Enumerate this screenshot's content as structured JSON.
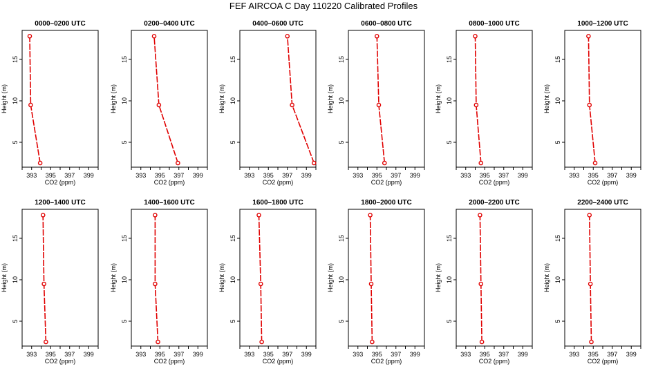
{
  "figure": {
    "title": "FEF AIRCOA C  Day 110220  Calibrated Profiles"
  },
  "colors": {
    "series": "#e00000",
    "axes": "#000000",
    "background": "#ffffff"
  },
  "chart_data": [
    {
      "type": "line",
      "title": "0000–0200 UTC",
      "xlabel": "CO2 (ppm)",
      "ylabel": "Height (m)",
      "xlim": [
        392,
        400
      ],
      "ylim": [
        2,
        18.5
      ],
      "xticks": [
        "393",
        "395",
        "397",
        "399"
      ],
      "yticks": [
        "5",
        "10",
        "15"
      ],
      "series": [
        {
          "name": "CO2",
          "x": [
            393.9,
            392.9,
            392.8
          ],
          "y": [
            2.5,
            9.5,
            17.8
          ]
        }
      ]
    },
    {
      "type": "line",
      "title": "0200–0400 UTC",
      "xlabel": "CO2 (ppm)",
      "ylabel": "Height (m)",
      "xlim": [
        392,
        400
      ],
      "ylim": [
        2,
        18.5
      ],
      "xticks": [
        "393",
        "395",
        "397",
        "399"
      ],
      "yticks": [
        "5",
        "10",
        "15"
      ],
      "series": [
        {
          "name": "CO2",
          "x": [
            396.9,
            394.9,
            394.4
          ],
          "y": [
            2.5,
            9.5,
            17.8
          ]
        }
      ]
    },
    {
      "type": "line",
      "title": "0400–0600 UTC",
      "xlabel": "CO2 (ppm)",
      "ylabel": "Height (m)",
      "xlim": [
        392,
        400
      ],
      "ylim": [
        2,
        18.5
      ],
      "xticks": [
        "393",
        "395",
        "397",
        "399"
      ],
      "yticks": [
        "5",
        "10",
        "15"
      ],
      "series": [
        {
          "name": "CO2",
          "x": [
            399.8,
            397.5,
            397.0
          ],
          "y": [
            2.5,
            9.5,
            17.8
          ]
        }
      ]
    },
    {
      "type": "line",
      "title": "0600–0800 UTC",
      "xlabel": "CO2 (ppm)",
      "ylabel": "Height (m)",
      "xlim": [
        392,
        400
      ],
      "ylim": [
        2,
        18.5
      ],
      "xticks": [
        "393",
        "395",
        "397",
        "399"
      ],
      "yticks": [
        "5",
        "10",
        "15"
      ],
      "series": [
        {
          "name": "CO2",
          "x": [
            395.8,
            395.2,
            395.0
          ],
          "y": [
            2.5,
            9.5,
            17.8
          ]
        }
      ]
    },
    {
      "type": "line",
      "title": "0800–1000 UTC",
      "xlabel": "CO2 (ppm)",
      "ylabel": "Height (m)",
      "xlim": [
        392,
        400
      ],
      "ylim": [
        2,
        18.5
      ],
      "xticks": [
        "393",
        "395",
        "397",
        "399"
      ],
      "yticks": [
        "5",
        "10",
        "15"
      ],
      "series": [
        {
          "name": "CO2",
          "x": [
            394.6,
            394.1,
            394.0
          ],
          "y": [
            2.5,
            9.5,
            17.8
          ]
        }
      ]
    },
    {
      "type": "line",
      "title": "1000–1200 UTC",
      "xlabel": "CO2 (ppm)",
      "ylabel": "Height (m)",
      "xlim": [
        392,
        400
      ],
      "ylim": [
        2,
        18.5
      ],
      "xticks": [
        "393",
        "395",
        "397",
        "399"
      ],
      "yticks": [
        "5",
        "10",
        "15"
      ],
      "series": [
        {
          "name": "CO2",
          "x": [
            395.2,
            394.6,
            394.5
          ],
          "y": [
            2.5,
            9.5,
            17.8
          ]
        }
      ]
    },
    {
      "type": "line",
      "title": "1200–1400 UTC",
      "xlabel": "CO2 (ppm)",
      "ylabel": "Height (m)",
      "xlim": [
        392,
        400
      ],
      "ylim": [
        2,
        18.5
      ],
      "xticks": [
        "393",
        "395",
        "397",
        "399"
      ],
      "yticks": [
        "5",
        "10",
        "15"
      ],
      "series": [
        {
          "name": "CO2",
          "x": [
            394.5,
            394.3,
            394.2
          ],
          "y": [
            2.5,
            9.5,
            17.8
          ]
        }
      ]
    },
    {
      "type": "line",
      "title": "1400–1600 UTC",
      "xlabel": "CO2 (ppm)",
      "ylabel": "Height (m)",
      "xlim": [
        392,
        400
      ],
      "ylim": [
        2,
        18.5
      ],
      "xticks": [
        "393",
        "395",
        "397",
        "399"
      ],
      "yticks": [
        "5",
        "10",
        "15"
      ],
      "series": [
        {
          "name": "CO2",
          "x": [
            394.8,
            394.5,
            394.5
          ],
          "y": [
            2.5,
            9.5,
            17.8
          ]
        }
      ]
    },
    {
      "type": "line",
      "title": "1600–1800 UTC",
      "xlabel": "CO2 (ppm)",
      "ylabel": "Height (m)",
      "xlim": [
        392,
        400
      ],
      "ylim": [
        2,
        18.5
      ],
      "xticks": [
        "393",
        "395",
        "397",
        "399"
      ],
      "yticks": [
        "5",
        "10",
        "15"
      ],
      "series": [
        {
          "name": "CO2",
          "x": [
            394.3,
            394.2,
            394.0
          ],
          "y": [
            2.5,
            9.5,
            17.8
          ]
        }
      ]
    },
    {
      "type": "line",
      "title": "1800–2000 UTC",
      "xlabel": "CO2 (ppm)",
      "ylabel": "Height (m)",
      "xlim": [
        392,
        400
      ],
      "ylim": [
        2,
        18.5
      ],
      "xticks": [
        "393",
        "395",
        "397",
        "399"
      ],
      "yticks": [
        "5",
        "10",
        "15"
      ],
      "series": [
        {
          "name": "CO2",
          "x": [
            394.5,
            394.4,
            394.3
          ],
          "y": [
            2.5,
            9.5,
            17.8
          ]
        }
      ]
    },
    {
      "type": "line",
      "title": "2000–2200 UTC",
      "xlabel": "CO2 (ppm)",
      "ylabel": "Height (m)",
      "xlim": [
        392,
        400
      ],
      "ylim": [
        2,
        18.5
      ],
      "xticks": [
        "393",
        "395",
        "397",
        "399"
      ],
      "yticks": [
        "5",
        "10",
        "15"
      ],
      "series": [
        {
          "name": "CO2",
          "x": [
            394.7,
            394.6,
            394.5
          ],
          "y": [
            2.5,
            9.5,
            17.8
          ]
        }
      ]
    },
    {
      "type": "line",
      "title": "2200–2400 UTC",
      "xlabel": "CO2 (ppm)",
      "ylabel": "Height (m)",
      "xlim": [
        392,
        400
      ],
      "ylim": [
        2,
        18.5
      ],
      "xticks": [
        "393",
        "395",
        "397",
        "399"
      ],
      "yticks": [
        "5",
        "10",
        "15"
      ],
      "series": [
        {
          "name": "CO2",
          "x": [
            394.8,
            394.7,
            394.6
          ],
          "y": [
            2.5,
            9.5,
            17.8
          ]
        }
      ]
    }
  ]
}
